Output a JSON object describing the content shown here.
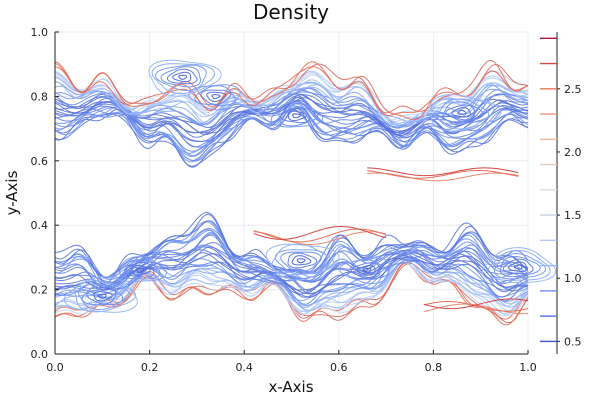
{
  "chart_data": {
    "type": "contour",
    "title": "Density",
    "xlabel": "x-Axis",
    "ylabel": "y-Axis",
    "xlim": [
      0,
      1
    ],
    "ylim": [
      0,
      1
    ],
    "xticks": [
      "0.0",
      "0.2",
      "0.4",
      "0.6",
      "0.8",
      "1.0"
    ],
    "yticks": [
      "0.0",
      "0.2",
      "0.4",
      "0.6",
      "0.8",
      "1.0"
    ],
    "grid": true,
    "legend": "none",
    "colorbar": {
      "range": [
        0.4,
        2.95
      ],
      "ticks": [
        "0.5",
        "1.0",
        "1.5",
        "2.0",
        "2.5"
      ],
      "levels": [
        0.5,
        0.7,
        0.9,
        1.1,
        1.3,
        1.5,
        1.7,
        1.9,
        2.1,
        2.3,
        2.5,
        2.7,
        2.9
      ],
      "colormap": [
        "#3b4cc0",
        "#6f92f3",
        "#aac7fd",
        "#dddddd",
        "#f7b89c",
        "#e7745b",
        "#b40426"
      ]
    },
    "features": {
      "upper_shear_layer_y": 0.75,
      "lower_shear_layer_y": 0.25,
      "vortex_centers": [
        {
          "x": 0.27,
          "y": 0.86
        },
        {
          "x": 0.34,
          "y": 0.8
        },
        {
          "x": 0.51,
          "y": 0.74
        },
        {
          "x": 0.86,
          "y": 0.75
        },
        {
          "x": 0.1,
          "y": 0.18
        },
        {
          "x": 0.18,
          "y": 0.26
        },
        {
          "x": 0.52,
          "y": 0.29
        },
        {
          "x": 0.66,
          "y": 0.26
        },
        {
          "x": 0.98,
          "y": 0.27
        }
      ]
    },
    "colors": {
      "low": "#3b4cc0",
      "mid": "#dddddd",
      "high": "#b40426"
    }
  }
}
